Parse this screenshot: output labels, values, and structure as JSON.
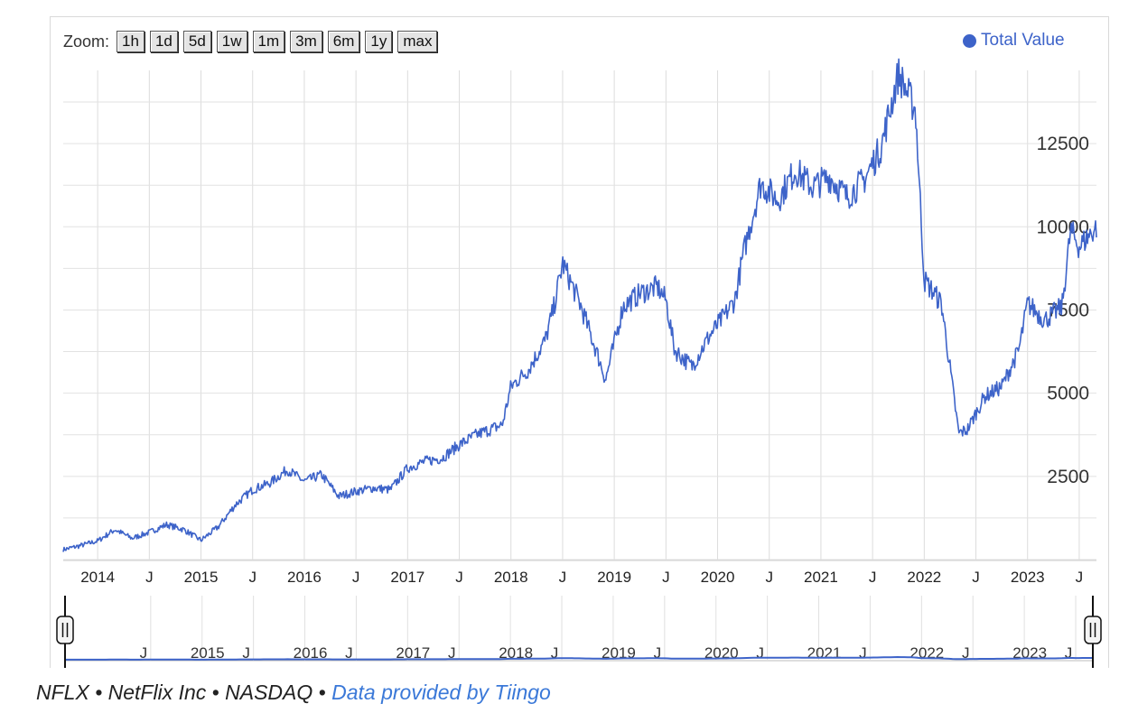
{
  "zoom": {
    "label": "Zoom:",
    "buttons": [
      "1h",
      "1d",
      "5d",
      "1w",
      "1m",
      "3m",
      "6m",
      "1y",
      "max"
    ]
  },
  "legend": {
    "label": "Total Value",
    "color": "#3d63c9"
  },
  "footer": {
    "symbol": "NFLX",
    "company": "NetFlix Inc",
    "exchange": "NASDAQ",
    "separator": "•",
    "source_link": "Data provided by Tiingo"
  },
  "chart_data": {
    "type": "line",
    "title": "",
    "xlabel": "",
    "ylabel": "",
    "x_range": [
      "2013-09",
      "2023-09"
    ],
    "ylim": [
      0,
      14700
    ],
    "y_ticks": [
      2500,
      5000,
      7500,
      10000,
      12500
    ],
    "x_tick_labels": [
      "2014",
      "J",
      "2015",
      "J",
      "2016",
      "J",
      "2017",
      "J",
      "2018",
      "J",
      "2019",
      "J",
      "2020",
      "J",
      "2021",
      "J",
      "2022",
      "J",
      "2023",
      "J"
    ],
    "navigator_tick_labels": [
      "J",
      "2015",
      "J",
      "2016",
      "J",
      "2017",
      "J",
      "2018",
      "J",
      "2019",
      "J",
      "2020",
      "J",
      "2021",
      "J",
      "2022",
      "J",
      "2023",
      "J"
    ],
    "grid": true,
    "legend_position": "top-right",
    "series": [
      {
        "name": "Total Value",
        "color": "#3d63c9",
        "points": [
          [
            "2013-09",
            300
          ],
          [
            "2013-11",
            420
          ],
          [
            "2014-01",
            560
          ],
          [
            "2014-03",
            900
          ],
          [
            "2014-05",
            640
          ],
          [
            "2014-07",
            820
          ],
          [
            "2014-09",
            1050
          ],
          [
            "2014-11",
            900
          ],
          [
            "2015-01",
            580
          ],
          [
            "2015-03",
            980
          ],
          [
            "2015-05",
            1650
          ],
          [
            "2015-07",
            2100
          ],
          [
            "2015-09",
            2300
          ],
          [
            "2015-11",
            2700
          ],
          [
            "2016-01",
            2350
          ],
          [
            "2016-03",
            2550
          ],
          [
            "2016-05",
            1900
          ],
          [
            "2016-07",
            2050
          ],
          [
            "2016-09",
            2150
          ],
          [
            "2016-11",
            2100
          ],
          [
            "2017-01",
            2750
          ],
          [
            "2017-03",
            2950
          ],
          [
            "2017-05",
            3050
          ],
          [
            "2017-07",
            3450
          ],
          [
            "2017-09",
            3750
          ],
          [
            "2017-11",
            3950
          ],
          [
            "2017-12",
            4050
          ],
          [
            "2018-01",
            5200
          ],
          [
            "2018-03",
            5700
          ],
          [
            "2018-05",
            6600
          ],
          [
            "2018-06",
            7600
          ],
          [
            "2018-07",
            8900
          ],
          [
            "2018-09",
            7700
          ],
          [
            "2018-11",
            6200
          ],
          [
            "2018-12",
            5400
          ],
          [
            "2019-02",
            7600
          ],
          [
            "2019-04",
            8000
          ],
          [
            "2019-06",
            8200
          ],
          [
            "2019-07",
            7800
          ],
          [
            "2019-08",
            6300
          ],
          [
            "2019-10",
            5800
          ],
          [
            "2019-12",
            6700
          ],
          [
            "2020-02",
            7400
          ],
          [
            "2020-03",
            7800
          ],
          [
            "2020-04",
            9200
          ],
          [
            "2020-06",
            11300
          ],
          [
            "2020-08",
            10800
          ],
          [
            "2020-10",
            11700
          ],
          [
            "2020-12",
            11200
          ],
          [
            "2021-02",
            11500
          ],
          [
            "2021-04",
            10900
          ],
          [
            "2021-06",
            11400
          ],
          [
            "2021-08",
            12400
          ],
          [
            "2021-10",
            14600
          ],
          [
            "2021-12",
            13500
          ],
          [
            "2022-01",
            8400
          ],
          [
            "2022-03",
            7700
          ],
          [
            "2022-05",
            3800
          ],
          [
            "2022-06",
            3900
          ],
          [
            "2022-08",
            4900
          ],
          [
            "2022-10",
            5200
          ],
          [
            "2022-12",
            6300
          ],
          [
            "2023-01",
            7700
          ],
          [
            "2023-03",
            7200
          ],
          [
            "2023-05",
            7600
          ],
          [
            "2023-06",
            9900
          ],
          [
            "2023-07",
            9400
          ],
          [
            "2023-09",
            10000
          ]
        ]
      }
    ]
  }
}
